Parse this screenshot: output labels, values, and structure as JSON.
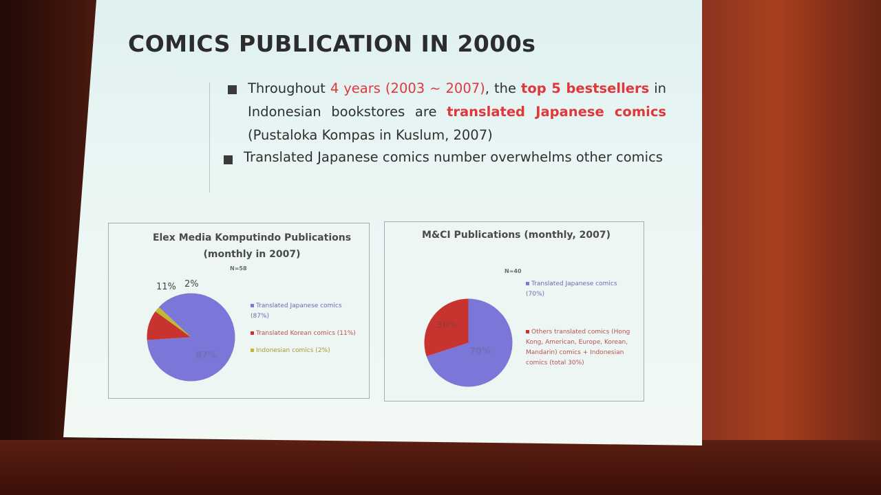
{
  "slide": {
    "title": "COMICS PUBLICATION IN 2000s",
    "bullet1": {
      "t1": "Throughout ",
      "t2": "4 years (2003 ~ 2007)",
      "t3": ", the ",
      "t4": "top 5 bestsellers",
      "t5": " in Indonesian bookstores are ",
      "t6": "translated Japanese comics",
      "t7": " (Pustaloka Kompas in Kuslum, 2007)"
    },
    "bullet2": "Translated Japanese comics number overwhelms other comics"
  },
  "chart_data": [
    {
      "type": "pie",
      "title": "Elex Media Komputindo Publications (monthly in 2007)",
      "n_label": "N=58",
      "categories": [
        "Translated Japanese comics (87%)",
        "Translated Korean comics (11%)",
        "Indonesian comics (2%)"
      ],
      "values": [
        87,
        11,
        2
      ],
      "value_labels": [
        "87%",
        "11%",
        "2%"
      ],
      "colors": [
        "#7a77d8",
        "#c8322f",
        "#c2b833"
      ],
      "legend": "right"
    },
    {
      "type": "pie",
      "title": "M&CI Publications (monthly, 2007)",
      "n_label": "N=40",
      "categories": [
        "Translated Japanese comics (70%)",
        "Others translated comics (Hong Kong, American, Europe, Korean, Mandarin) comics + Indonesian comics (total 30%)"
      ],
      "values": [
        70,
        30
      ],
      "value_labels": [
        "70%",
        "30%"
      ],
      "colors": [
        "#7a77d8",
        "#c8322f"
      ],
      "legend": "right"
    }
  ]
}
